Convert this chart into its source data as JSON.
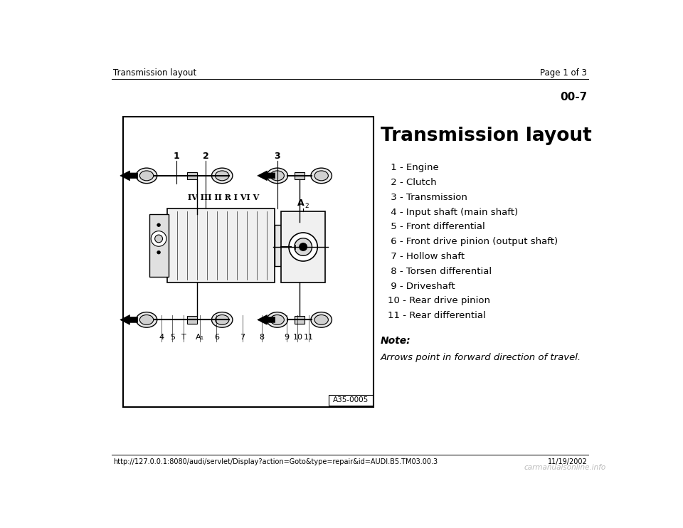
{
  "bg_color": "#ffffff",
  "header_left": "Transmission layout",
  "header_right": "Page 1 of 3",
  "page_number": "00-7",
  "title": "Transmission layout",
  "items": [
    " 1 - Engine",
    " 2 - Clutch",
    " 3 - Transmission",
    " 4 - Input shaft (main shaft)",
    " 5 - Front differential",
    " 6 - Front drive pinion (output shaft)",
    " 7 - Hollow shaft",
    " 8 - Torsen differential",
    " 9 - Driveshaft",
    "10 - Rear drive pinion",
    "11 - Rear differential"
  ],
  "note_label": "Note:",
  "note_text": "Arrows point in forward direction of travel.",
  "diagram_ref": "A35-0005",
  "footer_url": "http://127.0.0.1:8080/audi/servlet/Display?action=Goto&type=repair&id=AUDI.B5.TM03.00.3",
  "footer_date": "11/19/2002",
  "footer_logo": "carmanualsonline.info"
}
